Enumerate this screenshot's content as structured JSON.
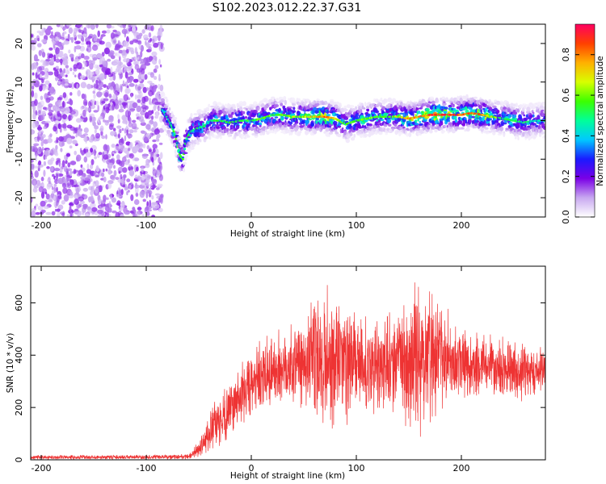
{
  "title": "S102.2023.012.22.37.G31",
  "chart_data": [
    {
      "type": "heatmap",
      "title": "",
      "xlabel": "Height of straight line (km)",
      "ylabel": "Frequency (Hz)",
      "xlim": [
        -210,
        280
      ],
      "ylim": [
        -25,
        25
      ],
      "xticks": [
        -200,
        -100,
        0,
        100,
        200
      ],
      "yticks": [
        -20,
        -10,
        0,
        10,
        20
      ],
      "colorbar": {
        "label": "Normalized spectral amplitude",
        "range": [
          0.0,
          0.95
        ],
        "ticks": [
          "0.0",
          "0.2",
          "0.4",
          "0.6",
          "0.8"
        ],
        "tick_values": [
          0.0,
          0.2,
          0.4,
          0.6,
          0.8
        ],
        "colors": [
          "#ffffff",
          "#c8a8f0",
          "#7a00e6",
          "#1a1aff",
          "#00c8ff",
          "#00ff9a",
          "#3cff00",
          "#d8ff00",
          "#ffb000",
          "#ff4000",
          "#ff0060"
        ]
      },
      "noise_region_x": [
        -210,
        -85
      ],
      "ridge": {
        "x": [
          -85,
          -78,
          -72,
          -68,
          -65,
          -62,
          -58,
          -52,
          -45,
          -38,
          -30,
          -20,
          -10,
          0,
          10,
          20,
          30,
          40,
          50,
          60,
          70,
          80,
          90,
          100,
          110,
          120,
          130,
          140,
          150,
          160,
          170,
          180,
          190,
          200,
          210,
          220,
          230,
          240,
          250,
          260,
          270,
          280
        ],
        "freq": [
          3,
          0,
          -4,
          -9,
          -10,
          -5,
          -3,
          -2,
          -1.5,
          0,
          0,
          -0.5,
          0,
          0,
          0.5,
          1.5,
          1.5,
          1,
          1,
          1,
          1,
          0.5,
          -1,
          0,
          0.5,
          1,
          1,
          1,
          0.5,
          1,
          1.5,
          1.5,
          1.5,
          1.5,
          2,
          1.5,
          1,
          0.5,
          0,
          -0.5,
          0,
          0
        ],
        "amplitude": [
          0.45,
          0.5,
          0.55,
          0.6,
          0.55,
          0.5,
          0.5,
          0.55,
          0.5,
          0.5,
          0.55,
          0.55,
          0.55,
          0.55,
          0.6,
          0.6,
          0.6,
          0.6,
          0.65,
          0.75,
          0.85,
          0.7,
          0.55,
          0.6,
          0.6,
          0.6,
          0.6,
          0.65,
          0.75,
          0.8,
          0.9,
          0.92,
          0.9,
          0.88,
          0.85,
          0.8,
          0.65,
          0.55,
          0.55,
          0.5,
          0.45,
          0.45
        ]
      }
    },
    {
      "type": "line",
      "title": "",
      "xlabel": "Height of straight line (km)",
      "ylabel": "SNR (10 * v/v)",
      "xlim": [
        -210,
        280
      ],
      "ylim": [
        0,
        740
      ],
      "xticks": [
        -200,
        -100,
        0,
        100,
        200
      ],
      "yticks": [
        0,
        200,
        400,
        600
      ],
      "color": "#ee3333",
      "envelope": {
        "x": [
          -210,
          -100,
          -60,
          -50,
          -40,
          -30,
          -20,
          -10,
          0,
          10,
          20,
          30,
          40,
          50,
          60,
          70,
          80,
          90,
          100,
          110,
          120,
          130,
          140,
          150,
          160,
          170,
          180,
          190,
          200,
          210,
          220,
          230,
          240,
          250,
          260,
          270,
          280
        ],
        "mean": [
          10,
          10,
          12,
          40,
          100,
          150,
          200,
          250,
          280,
          310,
          340,
          350,
          370,
          380,
          380,
          390,
          385,
          370,
          360,
          355,
          360,
          370,
          380,
          390,
          400,
          400,
          390,
          380,
          370,
          360,
          355,
          360,
          350,
          345,
          340,
          345,
          350
        ],
        "amp": [
          8,
          8,
          10,
          30,
          80,
          100,
          110,
          120,
          130,
          140,
          150,
          150,
          170,
          200,
          230,
          280,
          300,
          250,
          200,
          180,
          170,
          180,
          200,
          240,
          300,
          280,
          220,
          180,
          150,
          130,
          120,
          120,
          110,
          110,
          110,
          110,
          110
        ]
      }
    }
  ]
}
